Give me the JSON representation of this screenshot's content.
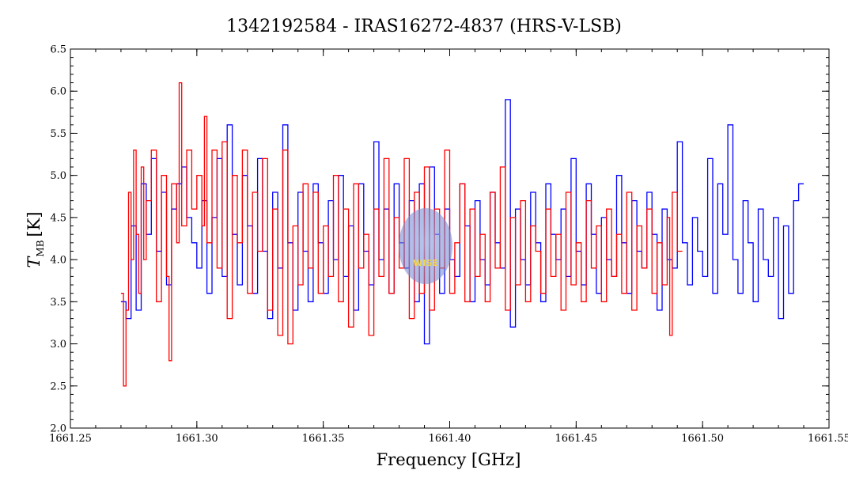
{
  "chart_data": {
    "type": "line",
    "title": "1342192584 - IRAS16272-4837 (HRS-V-LSB)",
    "xlabel": "Frequency [GHz]",
    "ylabel_main": "T",
    "ylabel_sub": "MB",
    "ylabel_unit": "[K]",
    "xlim": [
      1661.25,
      1661.55
    ],
    "ylim": [
      2.0,
      6.5
    ],
    "x_ticks": [
      "1661.25",
      "1661.30",
      "1661.35",
      "1661.40",
      "1661.45",
      "1661.50",
      "1661.55"
    ],
    "y_ticks": [
      "2.0",
      "2.5",
      "3.0",
      "3.5",
      "4.0",
      "4.5",
      "5.0",
      "5.5",
      "6.0",
      "6.5"
    ],
    "grid": false,
    "logo_text": "WISE",
    "series": [
      {
        "color": "#0000ff",
        "x": [
          1661.27,
          1661.272,
          1661.274,
          1661.276,
          1661.278,
          1661.28,
          1661.282,
          1661.284,
          1661.286,
          1661.288,
          1661.29,
          1661.292,
          1661.294,
          1661.296,
          1661.298,
          1661.3,
          1661.302,
          1661.304,
          1661.306,
          1661.308,
          1661.31,
          1661.312,
          1661.314,
          1661.316,
          1661.318,
          1661.32,
          1661.322,
          1661.324,
          1661.326,
          1661.328,
          1661.33,
          1661.332,
          1661.334,
          1661.336,
          1661.338,
          1661.34,
          1661.342,
          1661.344,
          1661.346,
          1661.348,
          1661.35,
          1661.352,
          1661.354,
          1661.356,
          1661.358,
          1661.36,
          1661.362,
          1661.364,
          1661.366,
          1661.368,
          1661.37,
          1661.372,
          1661.374,
          1661.376,
          1661.378,
          1661.38,
          1661.382,
          1661.384,
          1661.386,
          1661.388,
          1661.39,
          1661.392,
          1661.394,
          1661.396,
          1661.398,
          1661.4,
          1661.402,
          1661.404,
          1661.406,
          1661.408,
          1661.41,
          1661.412,
          1661.414,
          1661.416,
          1661.418,
          1661.42,
          1661.422,
          1661.424,
          1661.426,
          1661.428,
          1661.43,
          1661.432,
          1661.434,
          1661.436,
          1661.438,
          1661.44,
          1661.442,
          1661.444,
          1661.446,
          1661.448,
          1661.45,
          1661.452,
          1661.454,
          1661.456,
          1661.458,
          1661.46,
          1661.462,
          1661.464,
          1661.466,
          1661.468,
          1661.47,
          1661.472,
          1661.474,
          1661.476,
          1661.478,
          1661.48,
          1661.482,
          1661.484,
          1661.486,
          1661.488,
          1661.49,
          1661.492,
          1661.494,
          1661.496,
          1661.498,
          1661.5,
          1661.502,
          1661.504,
          1661.506,
          1661.508,
          1661.51,
          1661.512,
          1661.514,
          1661.516,
          1661.518,
          1661.52,
          1661.522,
          1661.524,
          1661.526,
          1661.528,
          1661.53,
          1661.532,
          1661.534,
          1661.536,
          1661.538
        ],
        "y": [
          3.5,
          3.3,
          4.4,
          3.4,
          4.9,
          4.3,
          5.2,
          4.1,
          4.8,
          3.7,
          4.6,
          4.9,
          5.1,
          4.5,
          4.2,
          3.9,
          4.7,
          3.6,
          4.5,
          5.2,
          3.8,
          5.6,
          4.3,
          3.7,
          5.0,
          4.4,
          3.6,
          5.2,
          4.1,
          3.3,
          4.8,
          3.9,
          5.6,
          4.2,
          3.4,
          4.8,
          4.1,
          3.5,
          4.9,
          4.2,
          3.6,
          4.7,
          4.0,
          5.0,
          3.8,
          4.4,
          3.4,
          4.9,
          4.1,
          3.7,
          5.4,
          4.0,
          4.6,
          3.6,
          4.9,
          4.2,
          3.9,
          4.7,
          3.5,
          4.9,
          3.0,
          5.1,
          4.3,
          3.6,
          4.6,
          4.0,
          3.8,
          4.9,
          4.4,
          3.5,
          4.7,
          4.0,
          3.7,
          4.8,
          4.2,
          3.9,
          5.9,
          3.2,
          4.6,
          4.0,
          3.7,
          4.8,
          4.2,
          3.5,
          4.9,
          4.3,
          4.0,
          4.6,
          3.8,
          5.2,
          4.1,
          3.7,
          4.9,
          4.3,
          3.6,
          4.5,
          4.0,
          3.8,
          5.0,
          4.2,
          3.6,
          4.7,
          4.1,
          3.9,
          4.8,
          4.3,
          3.4,
          4.6,
          4.0,
          3.9,
          5.4,
          4.2,
          3.7,
          4.5,
          4.1,
          3.8,
          5.2,
          3.6,
          4.9,
          4.3,
          5.6,
          4.0,
          3.6,
          4.7,
          4.2,
          3.5,
          4.6,
          4.0,
          3.8,
          4.5,
          3.3,
          4.4,
          3.6,
          4.7,
          4.9
        ]
      },
      {
        "color": "#ff0000",
        "x": [
          1661.27,
          1661.271,
          1661.272,
          1661.273,
          1661.274,
          1661.275,
          1661.276,
          1661.277,
          1661.278,
          1661.279,
          1661.28,
          1661.282,
          1661.284,
          1661.286,
          1661.288,
          1661.289,
          1661.29,
          1661.292,
          1661.293,
          1661.294,
          1661.296,
          1661.298,
          1661.3,
          1661.302,
          1661.303,
          1661.304,
          1661.306,
          1661.308,
          1661.31,
          1661.312,
          1661.314,
          1661.316,
          1661.318,
          1661.32,
          1661.322,
          1661.324,
          1661.326,
          1661.328,
          1661.33,
          1661.332,
          1661.334,
          1661.336,
          1661.338,
          1661.34,
          1661.342,
          1661.344,
          1661.346,
          1661.348,
          1661.35,
          1661.352,
          1661.354,
          1661.356,
          1661.358,
          1661.36,
          1661.362,
          1661.364,
          1661.366,
          1661.368,
          1661.37,
          1661.372,
          1661.374,
          1661.376,
          1661.378,
          1661.38,
          1661.382,
          1661.384,
          1661.386,
          1661.388,
          1661.39,
          1661.392,
          1661.394,
          1661.396,
          1661.398,
          1661.4,
          1661.402,
          1661.404,
          1661.406,
          1661.408,
          1661.41,
          1661.412,
          1661.414,
          1661.416,
          1661.418,
          1661.42,
          1661.422,
          1661.424,
          1661.426,
          1661.428,
          1661.43,
          1661.432,
          1661.434,
          1661.436,
          1661.438,
          1661.44,
          1661.442,
          1661.444,
          1661.446,
          1661.448,
          1661.45,
          1661.452,
          1661.454,
          1661.456,
          1661.458,
          1661.46,
          1661.462,
          1661.464,
          1661.466,
          1661.468,
          1661.47,
          1661.472,
          1661.474,
          1661.476,
          1661.478,
          1661.48,
          1661.482,
          1661.484,
          1661.486,
          1661.487,
          1661.488,
          1661.49
        ],
        "y": [
          3.6,
          2.5,
          3.4,
          4.8,
          4.0,
          5.3,
          4.3,
          3.6,
          5.1,
          4.0,
          4.7,
          5.3,
          3.5,
          5.0,
          3.8,
          2.8,
          4.9,
          4.2,
          6.1,
          4.4,
          5.3,
          4.6,
          5.0,
          4.4,
          5.7,
          4.2,
          5.3,
          3.9,
          5.4,
          3.3,
          5.0,
          4.2,
          5.3,
          3.6,
          4.8,
          4.1,
          5.2,
          3.4,
          4.6,
          3.1,
          5.3,
          3.0,
          4.4,
          3.7,
          4.9,
          3.9,
          4.8,
          3.6,
          4.4,
          3.8,
          5.0,
          3.5,
          4.6,
          3.2,
          4.9,
          3.9,
          4.3,
          3.1,
          4.6,
          3.8,
          5.2,
          3.6,
          4.5,
          3.9,
          5.2,
          3.3,
          4.8,
          3.6,
          5.1,
          3.4,
          4.6,
          3.9,
          5.3,
          3.6,
          4.2,
          4.9,
          3.5,
          4.6,
          3.8,
          4.3,
          3.5,
          4.8,
          3.9,
          5.1,
          3.4,
          4.5,
          3.7,
          4.7,
          3.5,
          4.4,
          4.1,
          3.6,
          4.6,
          3.8,
          4.3,
          3.4,
          4.8,
          3.7,
          4.2,
          3.5,
          4.7,
          3.9,
          4.4,
          3.5,
          4.6,
          3.8,
          4.3,
          3.6,
          4.8,
          3.4,
          4.4,
          3.9,
          4.6,
          3.6,
          4.2,
          3.7,
          4.5,
          3.1,
          4.8,
          4.1
        ]
      }
    ]
  }
}
